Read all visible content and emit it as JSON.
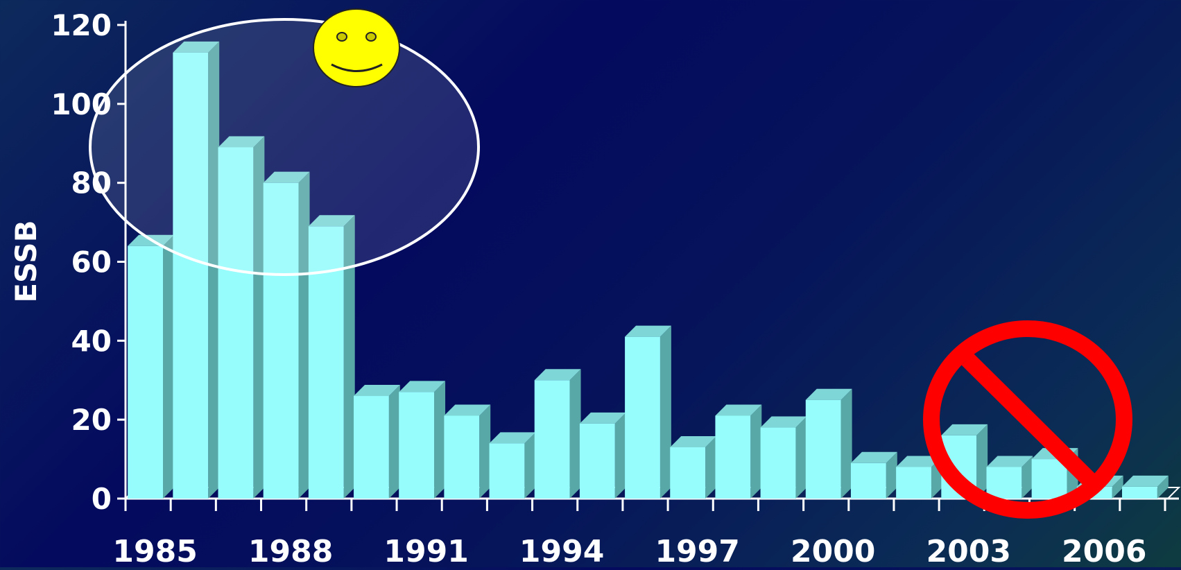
{
  "chart_data": {
    "type": "bar",
    "title": "",
    "xlabel": "",
    "ylabel": "ESSB",
    "ylim": [
      0,
      120
    ],
    "yticks": [
      0,
      20,
      40,
      60,
      80,
      100,
      120
    ],
    "categories": [
      "1985",
      "1986",
      "1987",
      "1988",
      "1989",
      "1990",
      "1991",
      "1992",
      "1993",
      "1994",
      "1995",
      "1996",
      "1997",
      "1998",
      "1999",
      "2000",
      "2001",
      "2002",
      "2003",
      "2004",
      "2005",
      "2006",
      "2007"
    ],
    "xtick_labels": [
      "1985",
      "1988",
      "1991",
      "1994",
      "1997",
      "2000",
      "2003",
      "2006"
    ],
    "values": [
      64,
      113,
      89,
      80,
      69,
      26,
      27,
      21,
      14,
      30,
      19,
      41,
      13,
      21,
      18,
      25,
      9,
      8,
      16,
      8,
      10,
      3,
      3
    ],
    "grid": false,
    "legend": "none",
    "colors": {
      "bar_front": "#96fcfc",
      "bar_side": "#58a8a8",
      "bar_top": "#7ed6d6",
      "axis": "#ffffff"
    },
    "annotations": [
      {
        "kind": "ellipse-highlight",
        "covers": [
          "1985",
          "1989"
        ],
        "color": "#ffffff"
      },
      {
        "kind": "smiley-icon",
        "color": "#ffff00"
      },
      {
        "kind": "prohibition-icon",
        "covers": [
          "2002",
          "2006"
        ],
        "color": "#ff0000"
      }
    ]
  }
}
